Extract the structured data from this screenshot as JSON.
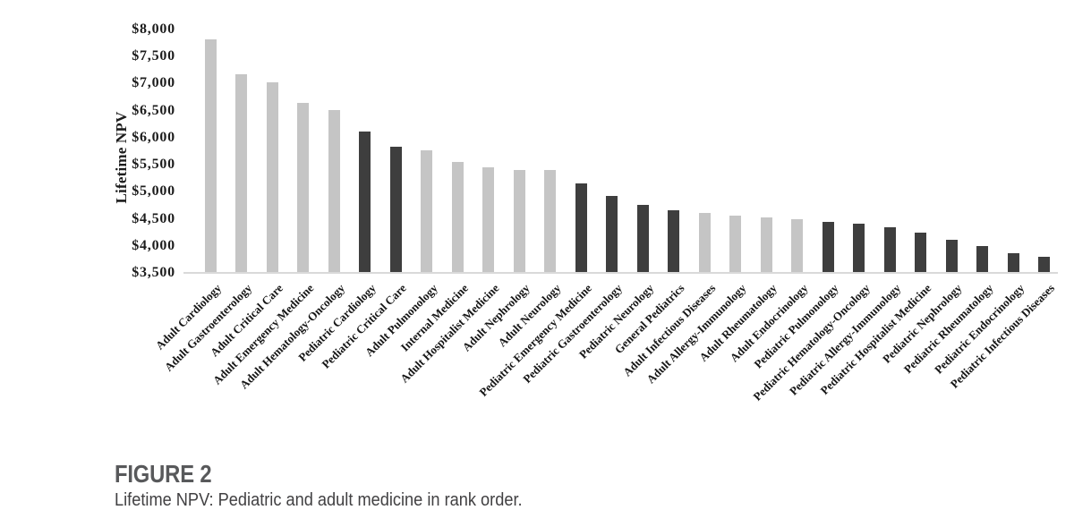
{
  "figure": {
    "label": "FIGURE 2",
    "caption": "Lifetime NPV: Pediatric and adult medicine in rank order."
  },
  "chart_data": {
    "type": "bar",
    "title": "",
    "xlabel": "",
    "ylabel": "Lifetime NPV",
    "ylim": [
      3500,
      8000
    ],
    "ytick_interval": 500,
    "ytick_labels": [
      "$8,000",
      "$7,500",
      "$7,000",
      "$6,500",
      "$6,000",
      "$5,500",
      "$5,000",
      "$4,500",
      "$4,000",
      "$3,500"
    ],
    "grid": false,
    "legend": false,
    "value_unit": "lifetime net present value, thousands of dollars",
    "colors": {
      "adult": "#c5c5c5",
      "pediatric": "#3e3e3e",
      "axis_line": "#d9d9d9",
      "text": "#1c1c1c"
    },
    "bars": [
      {
        "label": "Adult Cardiology",
        "value": 7820,
        "group": "adult"
      },
      {
        "label": "Adult Gastroenterology",
        "value": 7170,
        "group": "adult"
      },
      {
        "label": "Adult Critical Care",
        "value": 7030,
        "group": "adult"
      },
      {
        "label": "Adult Emergency Medicine",
        "value": 6640,
        "group": "adult"
      },
      {
        "label": "Adult Hematology-Oncology",
        "value": 6510,
        "group": "adult"
      },
      {
        "label": "Pediatric Cardiology",
        "value": 6110,
        "group": "pediatric"
      },
      {
        "label": "Pediatric Critical Care",
        "value": 5830,
        "group": "pediatric"
      },
      {
        "label": "Adult Pulmonology",
        "value": 5770,
        "group": "adult"
      },
      {
        "label": "Internal Medicine",
        "value": 5560,
        "group": "adult"
      },
      {
        "label": "Adult Hospitalist Medicine",
        "value": 5450,
        "group": "adult"
      },
      {
        "label": "Adult Nephrology",
        "value": 5410,
        "group": "adult"
      },
      {
        "label": "Adult Neurology",
        "value": 5410,
        "group": "adult"
      },
      {
        "label": "Pediatric Emergency Medicine",
        "value": 5150,
        "group": "pediatric"
      },
      {
        "label": "Pediatric Gastroenterology",
        "value": 4930,
        "group": "pediatric"
      },
      {
        "label": "Pediatric Neurology",
        "value": 4760,
        "group": "pediatric"
      },
      {
        "label": "General Pediatrics",
        "value": 4660,
        "group": "pediatric"
      },
      {
        "label": "Adult Infectious Diseases",
        "value": 4610,
        "group": "adult"
      },
      {
        "label": "Adult Allergy-Immunology",
        "value": 4560,
        "group": "adult"
      },
      {
        "label": "Adult Rheumatology",
        "value": 4530,
        "group": "adult"
      },
      {
        "label": "Adult Endocrinology",
        "value": 4490,
        "group": "adult"
      },
      {
        "label": "Pediatric Pulmonology",
        "value": 4450,
        "group": "pediatric"
      },
      {
        "label": "Pediatric Hematology-Oncology",
        "value": 4410,
        "group": "pediatric"
      },
      {
        "label": "Pediatric Allergy-Immunology",
        "value": 4340,
        "group": "pediatric"
      },
      {
        "label": "Pediatric Hospitalist Medicine",
        "value": 4240,
        "group": "pediatric"
      },
      {
        "label": "Pediatric Nephrology",
        "value": 4120,
        "group": "pediatric"
      },
      {
        "label": "Pediatric Rheumatology",
        "value": 3990,
        "group": "pediatric"
      },
      {
        "label": "Pediatric Endocrinology",
        "value": 3860,
        "group": "pediatric"
      },
      {
        "label": "Pediatric Infectious Diseases",
        "value": 3800,
        "group": "pediatric"
      }
    ]
  }
}
